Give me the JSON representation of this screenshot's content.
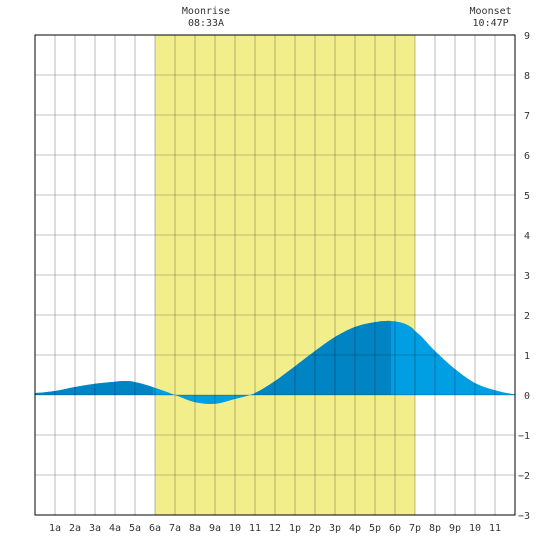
{
  "chart_data": {
    "type": "area",
    "title": "",
    "xlabel": "",
    "ylabel": "",
    "hours": [
      "1a",
      "2a",
      "3a",
      "4a",
      "5a",
      "6a",
      "7a",
      "8a",
      "9a",
      "10",
      "11",
      "12",
      "1p",
      "2p",
      "3p",
      "4p",
      "5p",
      "6p",
      "7p",
      "8p",
      "9p",
      "10",
      "11"
    ],
    "xlim": [
      0,
      24
    ],
    "ylim": [
      -3,
      9
    ],
    "yticks": [
      -3,
      -2,
      -1,
      0,
      1,
      2,
      3,
      4,
      5,
      6,
      7,
      8,
      9
    ],
    "grid": true,
    "daylight": {
      "start": 6.0,
      "end": 19.0,
      "color": "#f3ee8c"
    },
    "moon_events": [
      {
        "label": "Moonrise",
        "time": "08:33A",
        "hour": 8.55
      },
      {
        "label": "Moonset",
        "time": "10:47P",
        "hour": 22.78
      }
    ],
    "tide": {
      "x": [
        0,
        1,
        2,
        3,
        4,
        4.5,
        5,
        6,
        7,
        8,
        9,
        10,
        11,
        12,
        13,
        14,
        15,
        16,
        17,
        17.8,
        18.5,
        19,
        20,
        21,
        22,
        23,
        24
      ],
      "y": [
        0.05,
        0.1,
        0.2,
        0.28,
        0.33,
        0.35,
        0.32,
        0.18,
        0.0,
        -0.18,
        -0.22,
        -0.1,
        0.05,
        0.35,
        0.72,
        1.1,
        1.45,
        1.7,
        1.82,
        1.85,
        1.78,
        1.6,
        1.1,
        0.65,
        0.3,
        0.12,
        0.02
      ],
      "dark_intervals": [
        [
          0,
          5.9
        ],
        [
          11,
          17.8
        ]
      ],
      "dark_color": "#0084c4",
      "light_color": "#009ee3"
    }
  }
}
